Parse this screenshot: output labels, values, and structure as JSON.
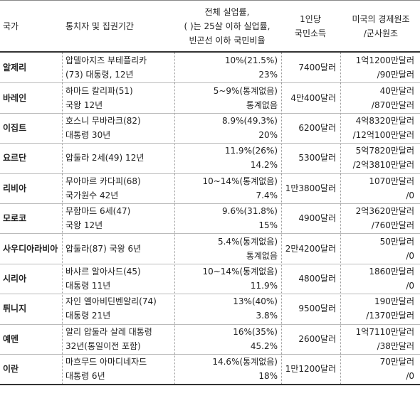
{
  "table": {
    "header": [
      [
        "국가"
      ],
      [
        "통치자 및 집권기간"
      ],
      [
        "전체 실업률,",
        "( )는 25살 이하 실업률,",
        "빈곤선 이하 국민비율"
      ],
      [
        "1인당",
        "국민소득"
      ],
      [
        "미국의 경제원조",
        "/군사원조"
      ]
    ],
    "rows": [
      [
        [
          "알제리"
        ],
        [
          "압델아지즈 부테플리카",
          "(73) 대통령, 12년"
        ],
        [
          "10%(21.5%)",
          "23%"
        ],
        [
          "7400달러"
        ],
        [
          "1억1200만달러",
          "/90만달러"
        ]
      ],
      [
        [
          "바레인"
        ],
        [
          "하마드 칼리파(51)",
          "국왕 12년"
        ],
        [
          "5~9%(통계없음)",
          "통계없음"
        ],
        [
          "4만400달러"
        ],
        [
          "40만달러",
          "/870만달러"
        ]
      ],
      [
        [
          "이집트"
        ],
        [
          "호스니 무바라크(82)",
          "대통령 30년"
        ],
        [
          "8.9%(49.3%)",
          "20%"
        ],
        [
          "6200달러"
        ],
        [
          "4억8320만달러",
          "/12억100만달러"
        ]
      ],
      [
        [
          "요르단"
        ],
        [
          "압둘라 2세(49) 12년"
        ],
        [
          "11.9%(26%)",
          "14.2%"
        ],
        [
          "5300달러"
        ],
        [
          "5억7820만달러",
          "/2억3810만달러"
        ]
      ],
      [
        [
          "리비아"
        ],
        [
          "무아마르 카다피(68)",
          "국가원수 42년"
        ],
        [
          "10~14%(통계없음)",
          "7.4%"
        ],
        [
          "1만3800달러"
        ],
        [
          "1070만달러",
          "/0"
        ]
      ],
      [
        [
          "모로코"
        ],
        [
          "무함마드 6세(47)",
          "국왕 12년"
        ],
        [
          "9.6%(31.8%)",
          "15%"
        ],
        [
          "4900달러"
        ],
        [
          "2억3620만달러",
          "/760만달러"
        ]
      ],
      [
        [
          "사우디아라비아"
        ],
        [
          "압둘라(87) 국왕 6년"
        ],
        [
          "5.4%(통계없음)",
          "통계없음"
        ],
        [
          "2만4200달러"
        ],
        [
          "50만달러",
          "/0"
        ]
      ],
      [
        [
          "시리아"
        ],
        [
          "바샤르 알아사드(45)",
          "대통령 11년"
        ],
        [
          "10~14%(통계없음)",
          "11.9%"
        ],
        [
          "4800달러"
        ],
        [
          "1860만달러",
          "/0"
        ]
      ],
      [
        [
          "튀니지"
        ],
        [
          "자인 엘아비딘벤알리(74)",
          "대통령 21년"
        ],
        [
          "13%(40%)",
          "3.8%"
        ],
        [
          "9500달러"
        ],
        [
          "190만달러",
          "/1370만달러"
        ]
      ],
      [
        [
          "예멘"
        ],
        [
          "알리 압둘라 살레 대통령",
          "32년(통일이전 포함)"
        ],
        [
          "16%(35%)",
          "45.2%"
        ],
        [
          "2600달러"
        ],
        [
          "1억7110만달러",
          "/38만달러"
        ]
      ],
      [
        [
          "이란"
        ],
        [
          "마흐무드 아마디네자드",
          "대통령 6년"
        ],
        [
          "14.6%(통계없음)",
          "18%"
        ],
        [
          "1만1200달러"
        ],
        [
          "70만달러",
          "/0"
        ]
      ]
    ]
  }
}
